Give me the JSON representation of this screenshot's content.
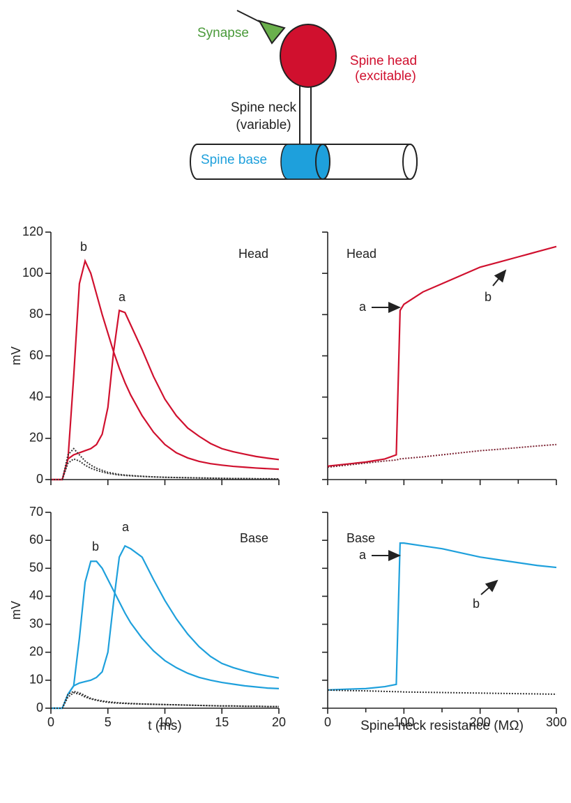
{
  "diagram": {
    "labels": [
      "Synapse",
      "Spine head",
      "(excitable)",
      "Spine neck",
      "(variable)",
      "Spine base"
    ]
  },
  "chart_data": [
    {
      "type": "line",
      "panel_label": "Head",
      "annotations": [
        "b",
        "a"
      ],
      "ylabel": "mV",
      "x": [
        0,
        1,
        1.5,
        2,
        2.5,
        3,
        3.5,
        4,
        4.5,
        5,
        5.5,
        6,
        6.5,
        7,
        8,
        9,
        10,
        11,
        12,
        13,
        14,
        15,
        16,
        17,
        18,
        19,
        20
      ],
      "xlim": [
        0,
        20
      ],
      "xticks": [
        0,
        5,
        10,
        15,
        20
      ],
      "ylim": [
        0,
        120
      ],
      "yticks": [
        0,
        20,
        40,
        60,
        80,
        100,
        120
      ],
      "x_tick_labels": false,
      "y_tick_labels": true,
      "series": [
        {
          "color": "#d0102e",
          "dotted": false,
          "values": [
            0,
            0,
            10,
            50,
            95,
            106,
            100,
            90,
            80,
            71,
            62,
            54,
            47,
            41,
            31,
            23,
            17,
            13,
            10.5,
            8.8,
            7.7,
            7,
            6.4,
            6,
            5.6,
            5.3,
            5
          ]
        },
        {
          "color": "#d0102e",
          "dotted": false,
          "values": [
            0,
            0,
            10,
            12,
            13,
            14,
            15,
            17,
            22,
            35,
            62,
            82,
            81,
            75,
            63,
            50,
            39,
            31,
            25,
            21,
            17.5,
            15,
            13.5,
            12.3,
            11.2,
            10.4,
            9.7
          ]
        },
        {
          "color": "#333333",
          "dotted": true,
          "values": [
            0,
            0,
            12,
            15,
            12,
            9,
            7,
            5.5,
            4.5,
            3.5,
            3,
            2.5,
            2.2,
            2,
            1.6,
            1.3,
            1.1,
            1,
            0.9,
            0.8,
            0.7,
            0.6,
            0.5,
            0.5,
            0.4,
            0.4,
            0.3
          ]
        },
        {
          "color": "#333333",
          "dotted": true,
          "values": [
            0,
            0,
            8,
            10,
            9,
            7,
            5.5,
            4.5,
            3.7,
            3,
            2.6,
            2.2,
            2,
            1.8,
            1.5,
            1.3,
            1.1,
            1,
            0.9,
            0.8,
            0.7,
            0.6,
            0.5,
            0.5,
            0.4,
            0.4,
            0.3
          ]
        }
      ]
    },
    {
      "type": "line",
      "panel_label": "Head",
      "annotations": [
        "a",
        "b"
      ],
      "x": [
        0,
        25,
        50,
        75,
        90,
        95,
        100,
        125,
        150,
        175,
        200,
        225,
        250,
        275,
        300
      ],
      "xlim": [
        0,
        300
      ],
      "xticks": [
        0,
        100,
        200,
        300
      ],
      "xminor": [
        50,
        150,
        250
      ],
      "ylim": [
        0,
        120
      ],
      "yticks": [
        0,
        20,
        40,
        60,
        80,
        100,
        120
      ],
      "x_tick_labels": false,
      "y_tick_labels": false,
      "series": [
        {
          "color": "#d0102e",
          "dotted": false,
          "values": [
            6.5,
            7.5,
            8.5,
            10,
            12,
            82,
            85,
            91,
            95,
            99,
            103,
            105.5,
            108,
            110.5,
            113
          ]
        },
        {
          "color": "#7a2030",
          "dotted": true,
          "values": [
            6,
            7,
            8,
            9,
            9.5,
            10,
            10.2,
            11,
            12,
            13,
            14,
            14.7,
            15.5,
            16.3,
            17
          ]
        }
      ]
    },
    {
      "type": "line",
      "panel_label": "Base",
      "annotations": [
        "b",
        "a"
      ],
      "ylabel": "mV",
      "xlabel": "t (ms)",
      "x": [
        0,
        1,
        1.5,
        2,
        2.5,
        3,
        3.5,
        4,
        4.5,
        5,
        5.5,
        6,
        6.5,
        7,
        8,
        9,
        10,
        11,
        12,
        13,
        14,
        15,
        16,
        17,
        18,
        19,
        20
      ],
      "xlim": [
        0,
        20
      ],
      "xticks": [
        0,
        5,
        10,
        15,
        20
      ],
      "ylim": [
        0,
        70
      ],
      "yticks": [
        0,
        10,
        20,
        30,
        40,
        50,
        60,
        70
      ],
      "x_tick_labels": true,
      "y_tick_labels": true,
      "series": [
        {
          "color": "#1ea0dc",
          "dotted": false,
          "values": [
            0,
            0,
            5,
            8,
            25,
            45,
            52.5,
            52.5,
            50,
            46,
            42,
            38,
            34,
            30.5,
            25,
            20.5,
            17,
            14.5,
            12.5,
            11,
            10,
            9.2,
            8.6,
            8,
            7.6,
            7.2,
            7
          ]
        },
        {
          "color": "#1ea0dc",
          "dotted": false,
          "values": [
            0,
            0,
            5,
            8,
            9,
            9.5,
            10,
            11,
            13,
            20,
            38,
            54,
            58,
            57,
            54,
            46,
            38.5,
            32,
            26.5,
            22,
            18.5,
            16,
            14.5,
            13.3,
            12.3,
            11.5,
            10.8
          ]
        },
        {
          "color": "#333333",
          "dotted": true,
          "values": [
            0,
            0,
            5,
            6,
            5.5,
            4.5,
            3.5,
            3,
            2.6,
            2.3,
            2.1,
            1.9,
            1.8,
            1.7,
            1.5,
            1.4,
            1.3,
            1.2,
            1.1,
            1,
            0.9,
            0.8,
            0.8,
            0.7,
            0.7,
            0.6,
            0.6
          ]
        },
        {
          "color": "#333333",
          "dotted": true,
          "values": [
            0,
            0,
            4,
            5.5,
            5,
            4,
            3.3,
            2.8,
            2.4,
            2.1,
            1.9,
            1.8,
            1.7,
            1.6,
            1.5,
            1.4,
            1.3,
            1.2,
            1.1,
            1,
            0.9,
            0.8,
            0.8,
            0.7,
            0.7,
            0.6,
            0.6
          ]
        }
      ]
    },
    {
      "type": "line",
      "panel_label": "Base",
      "annotations": [
        "a",
        "b"
      ],
      "xlabel": "Spine neck resistance (MΩ)",
      "x": [
        0,
        25,
        50,
        75,
        90,
        95,
        100,
        125,
        150,
        175,
        200,
        225,
        250,
        275,
        300
      ],
      "xlim": [
        0,
        300
      ],
      "xticks": [
        0,
        100,
        200,
        300
      ],
      "xminor": [
        50,
        150,
        250
      ],
      "ylim": [
        0,
        70
      ],
      "yticks": [
        0,
        10,
        20,
        30,
        40,
        50,
        60,
        70
      ],
      "x_tick_labels": true,
      "y_tick_labels": false,
      "series": [
        {
          "color": "#1ea0dc",
          "dotted": false,
          "values": [
            6.5,
            6.8,
            7,
            7.7,
            8.5,
            59,
            59,
            58,
            57,
            55.5,
            54,
            53,
            52,
            51,
            50.3
          ]
        },
        {
          "color": "#333333",
          "dotted": true,
          "values": [
            6.5,
            6.3,
            6.2,
            6,
            5.9,
            5.9,
            5.8,
            5.7,
            5.6,
            5.5,
            5.4,
            5.3,
            5.2,
            5.1,
            5
          ]
        }
      ]
    }
  ]
}
